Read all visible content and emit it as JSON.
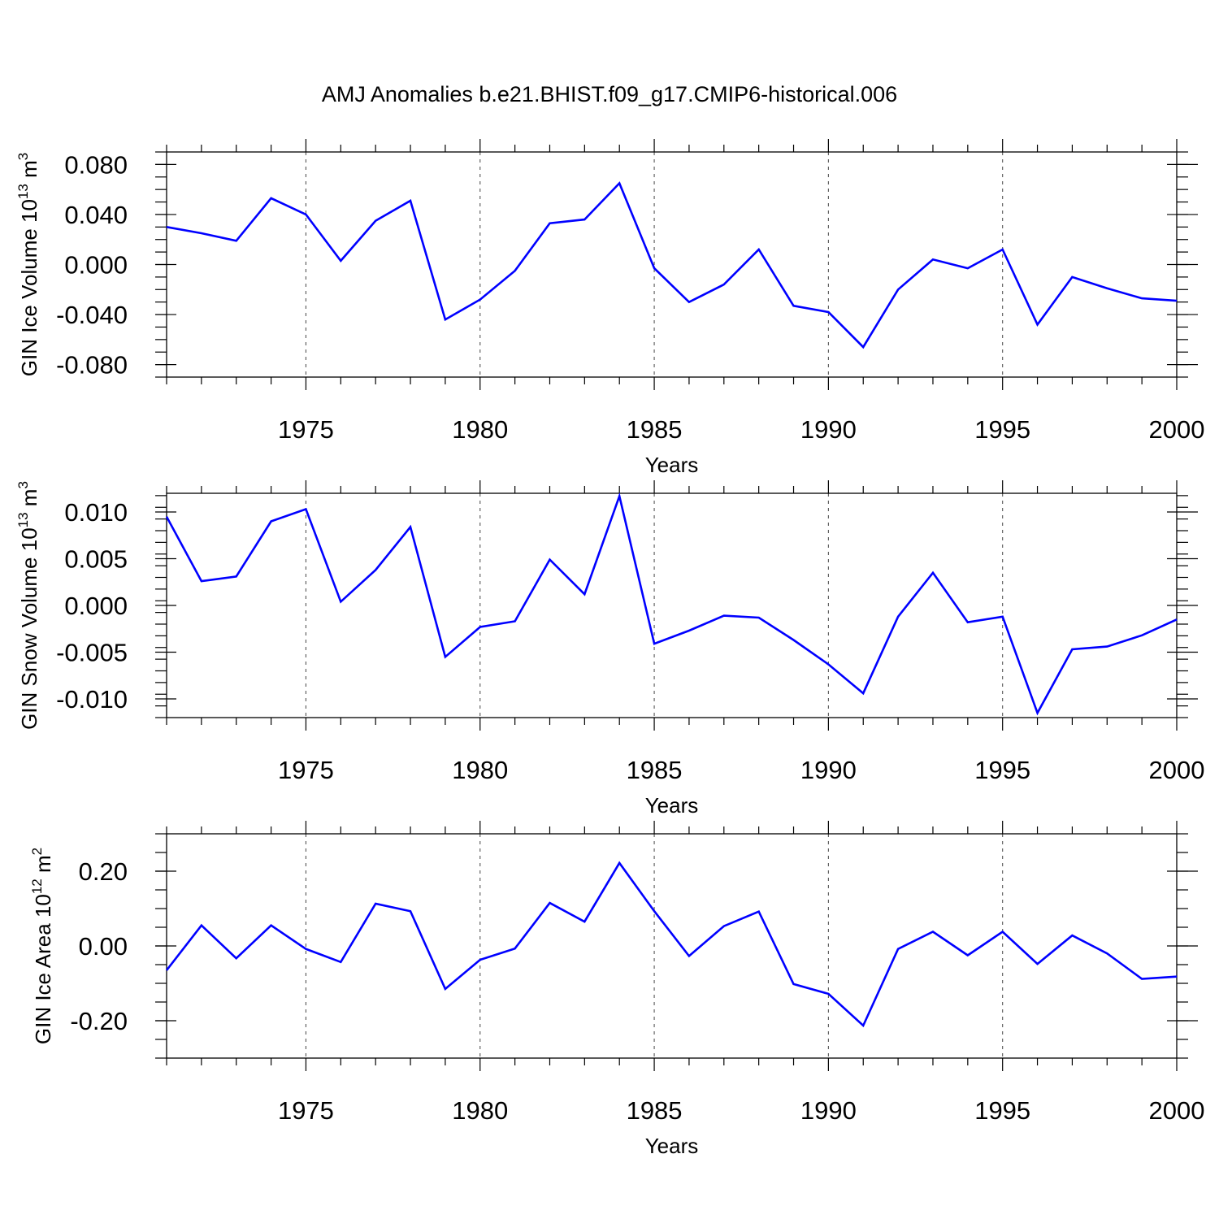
{
  "title": "AMJ Anomalies b.e21.BHIST.f09_g17.CMIP6-historical.006",
  "line_color": "#0000ff",
  "chart_data": [
    {
      "type": "line",
      "title": "AMJ Anomalies b.e21.BHIST.f09_g17.CMIP6-historical.006",
      "xlabel": "Years",
      "ylabel_base": "GIN Ice Volume 10",
      "ylabel_exp": "13",
      "ylabel_unit": "m",
      "ylabel_unit_exp": "3",
      "xlim": [
        1971,
        2000
      ],
      "ylim": [
        -0.09,
        0.09
      ],
      "xticks": [
        1975,
        1980,
        1985,
        1990,
        1995,
        2000
      ],
      "xtick_labels": [
        "1975",
        "1980",
        "1985",
        "1990",
        "1995",
        "2000"
      ],
      "yticks": [
        0.08,
        0.04,
        0.0,
        -0.04,
        -0.08
      ],
      "ytick_labels": [
        "0.080",
        "0.040",
        "0.000",
        "-0.040",
        "-0.080"
      ],
      "grid": "vertical dashed at major x ticks",
      "x": [
        1971,
        1972,
        1973,
        1974,
        1975,
        1976,
        1977,
        1978,
        1979,
        1980,
        1981,
        1982,
        1983,
        1984,
        1985,
        1986,
        1987,
        1988,
        1989,
        1990,
        1991,
        1992,
        1993,
        1994,
        1995,
        1996,
        1997,
        1998,
        1999,
        2000
      ],
      "series": [
        {
          "name": "GIN Ice Volume",
          "values": [
            0.03,
            0.025,
            0.019,
            0.053,
            0.04,
            0.003,
            0.035,
            0.051,
            -0.044,
            -0.028,
            -0.005,
            0.033,
            0.036,
            0.065,
            -0.003,
            -0.03,
            -0.016,
            0.012,
            -0.033,
            -0.038,
            -0.066,
            -0.02,
            0.004,
            -0.003,
            0.012,
            -0.048,
            -0.01,
            -0.019,
            -0.027,
            -0.029
          ]
        }
      ]
    },
    {
      "type": "line",
      "xlabel": "Years",
      "ylabel_base": "GIN Snow Volume 10",
      "ylabel_exp": "13",
      "ylabel_unit": "m",
      "ylabel_unit_exp": "3",
      "xlim": [
        1971,
        2000
      ],
      "ylim": [
        -0.012,
        0.012
      ],
      "xticks": [
        1975,
        1980,
        1985,
        1990,
        1995,
        2000
      ],
      "xtick_labels": [
        "1975",
        "1980",
        "1985",
        "1990",
        "1995",
        "2000"
      ],
      "yticks": [
        0.01,
        0.005,
        0.0,
        -0.005,
        -0.01
      ],
      "ytick_labels": [
        "0.010",
        "0.005",
        "0.000",
        "-0.005",
        "-0.010"
      ],
      "grid": "vertical dashed at major x ticks",
      "x": [
        1971,
        1972,
        1973,
        1974,
        1975,
        1976,
        1977,
        1978,
        1979,
        1980,
        1981,
        1982,
        1983,
        1984,
        1985,
        1986,
        1987,
        1988,
        1989,
        1990,
        1991,
        1992,
        1993,
        1994,
        1995,
        1996,
        1997,
        1998,
        1999,
        2000
      ],
      "series": [
        {
          "name": "GIN Snow Volume",
          "values": [
            0.0095,
            0.0026,
            0.0031,
            0.009,
            0.0103,
            0.0004,
            0.0038,
            0.0084,
            -0.0055,
            -0.0023,
            -0.0017,
            0.0049,
            0.0012,
            0.0117,
            -0.0041,
            -0.0027,
            -0.0011,
            -0.0013,
            -0.0037,
            -0.0063,
            -0.0094,
            -0.0012,
            0.0035,
            -0.0018,
            -0.0012,
            -0.0115,
            -0.0047,
            -0.0044,
            -0.0032,
            -0.0015
          ]
        }
      ]
    },
    {
      "type": "line",
      "xlabel": "Years",
      "ylabel_base": "GIN Ice Area 10",
      "ylabel_exp": "12",
      "ylabel_unit": "m",
      "ylabel_unit_exp": "2",
      "xlim": [
        1971,
        2000
      ],
      "ylim": [
        -0.3,
        0.3
      ],
      "xticks": [
        1975,
        1980,
        1985,
        1990,
        1995,
        2000
      ],
      "xtick_labels": [
        "1975",
        "1980",
        "1985",
        "1990",
        "1995",
        "2000"
      ],
      "yticks": [
        0.2,
        0.0,
        -0.2
      ],
      "ytick_labels": [
        "0.20",
        "0.00",
        "-0.20"
      ],
      "grid": "vertical dashed at major x ticks",
      "x": [
        1971,
        1972,
        1973,
        1974,
        1975,
        1976,
        1977,
        1978,
        1979,
        1980,
        1981,
        1982,
        1983,
        1984,
        1985,
        1986,
        1987,
        1988,
        1989,
        1990,
        1991,
        1992,
        1993,
        1994,
        1995,
        1996,
        1997,
        1998,
        1999,
        2000
      ],
      "series": [
        {
          "name": "GIN Ice Area",
          "values": [
            -0.065,
            0.055,
            -0.033,
            0.055,
            -0.008,
            -0.043,
            0.113,
            0.093,
            -0.115,
            -0.037,
            -0.007,
            0.115,
            0.065,
            0.222,
            0.093,
            -0.027,
            0.053,
            0.092,
            -0.102,
            -0.128,
            -0.213,
            -0.008,
            0.038,
            -0.025,
            0.038,
            -0.048,
            0.028,
            -0.02,
            -0.088,
            -0.082
          ]
        }
      ]
    }
  ]
}
